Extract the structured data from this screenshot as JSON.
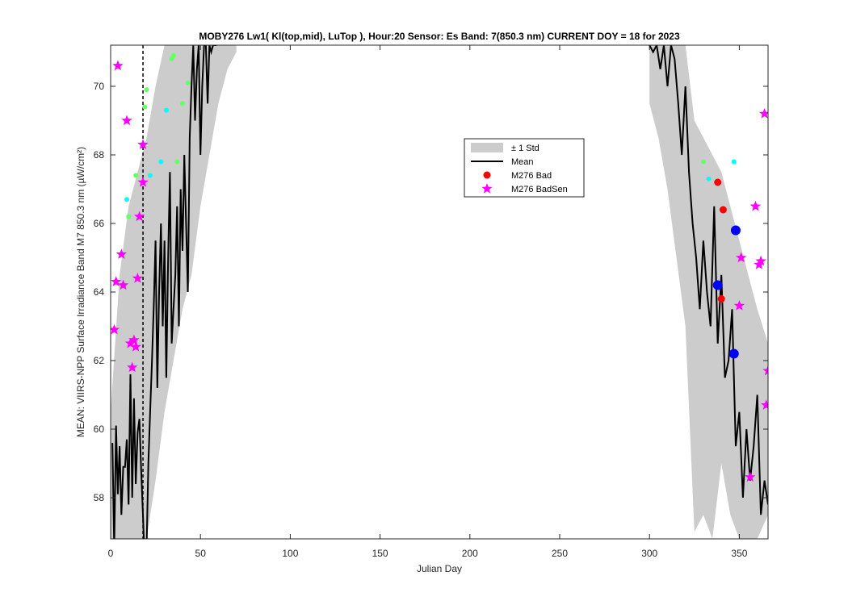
{
  "chart_data": {
    "type": "line",
    "title": "MOBY276   Lw1( Kl(top,mid), LuTop ),   Hour:20 Sensor: Es Band: 7(850.3 nm)   CURRENT DOY = 18 for 2023",
    "xlabel": "Julian Day",
    "ylabel": "MEAN: VIIRS-NPP Surface Irradiance Band M7 850.3 nm (µW/cm²)",
    "xlim": [
      0,
      366
    ],
    "ylim": [
      56.8,
      71.2
    ],
    "xticks": [
      0,
      50,
      100,
      150,
      200,
      250,
      300,
      350
    ],
    "yticks": [
      58,
      60,
      62,
      64,
      66,
      68,
      70
    ],
    "current_doy": 18,
    "legend": {
      "placement": "upper-center-right",
      "entries": [
        {
          "label": "± 1 Std",
          "kind": "band",
          "color": "#cccccc"
        },
        {
          "label": "Mean",
          "kind": "line",
          "color": "#000000"
        },
        {
          "label": "M276 Bad",
          "kind": "dot",
          "color": "#ff0000"
        },
        {
          "label": "M276 BadSen",
          "kind": "star",
          "color": "#ff00ff"
        }
      ]
    },
    "series": [
      {
        "name": "Mean",
        "color": "#000000",
        "x": [
          1,
          2,
          3,
          4,
          5,
          6,
          7,
          8,
          9,
          10,
          11,
          12,
          13,
          14,
          15,
          16,
          17,
          18,
          19,
          20,
          21,
          22,
          23,
          24,
          25,
          26,
          27,
          28,
          29,
          30,
          31,
          32,
          33,
          34,
          35,
          36,
          37,
          38,
          39,
          40,
          41,
          42,
          43,
          44,
          45,
          46,
          47,
          48,
          49,
          50,
          51,
          52,
          53,
          54,
          55,
          56,
          57,
          58,
          59
        ],
        "values": [
          59.6,
          56.5,
          60.1,
          58.1,
          59.5,
          57.5,
          58.9,
          58.9,
          59.7,
          57.8,
          61.6,
          58.0,
          60.9,
          58.4,
          59.9,
          60.3,
          58.8,
          57.5,
          56.0,
          56.5,
          59.0,
          60.5,
          62.0,
          63.6,
          65.5,
          61.2,
          64.0,
          66.0,
          63.0,
          65.5,
          61.5,
          65.0,
          67.5,
          62.5,
          63.5,
          64.5,
          66.5,
          63.0,
          67.0,
          65.2,
          68.0,
          66.0,
          64.0,
          68.5,
          70.0,
          71.2,
          69.0,
          70.5,
          71.2,
          68.0,
          70.0,
          71.2,
          71.2,
          69.5,
          71.2,
          71.0,
          71.2,
          71.2,
          71.2
        ]
      },
      {
        "name": "Mean",
        "color": "#000000",
        "x": [
          300,
          302,
          304,
          306,
          308,
          310,
          312,
          314,
          316,
          318,
          320,
          322,
          324,
          326,
          328,
          330,
          332,
          334,
          336,
          338,
          340,
          342,
          344,
          346,
          348,
          350,
          352,
          354,
          356,
          358,
          360,
          362,
          364,
          366
        ],
        "values": [
          71.2,
          71.0,
          71.2,
          70.5,
          71.2,
          70.0,
          71.2,
          70.8,
          69.5,
          68.0,
          70.0,
          67.5,
          66.0,
          65.0,
          63.5,
          65.5,
          64.0,
          63.0,
          66.5,
          62.5,
          64.5,
          61.5,
          62.0,
          63.5,
          59.5,
          60.5,
          58.0,
          60.0,
          58.5,
          59.5,
          61.0,
          57.5,
          58.5,
          57.8
        ]
      }
    ],
    "std_band": {
      "name": "± 1 Std",
      "color": "#cccccc",
      "x": [
        0,
        5,
        10,
        15,
        20,
        25,
        30,
        35,
        40,
        45,
        50,
        55,
        60,
        65,
        70,
        300,
        305,
        310,
        315,
        320,
        325,
        330,
        335,
        340,
        345,
        350,
        355,
        360,
        366
      ],
      "upper": [
        60.5,
        64.5,
        66.5,
        67.5,
        68.5,
        70.0,
        71.2,
        71.2,
        71.2,
        71.2,
        71.2,
        71.2,
        71.2,
        71.2,
        71.2,
        71.2,
        71.2,
        71.2,
        71.2,
        71.2,
        69.0,
        68.5,
        68.0,
        67.5,
        66.5,
        65.5,
        64.5,
        63.5,
        62.5
      ],
      "lower": [
        56.8,
        56.8,
        56.8,
        56.8,
        56.8,
        58.5,
        60.5,
        62.0,
        63.5,
        64.5,
        66.5,
        68.0,
        69.5,
        70.5,
        71.0,
        69.5,
        68.5,
        67.0,
        65.0,
        63.0,
        57.0,
        57.5,
        56.8,
        59.0,
        57.5,
        56.8,
        56.8,
        56.8,
        57.5
      ]
    },
    "flagged_cyan": {
      "color": "#00ffff",
      "x": [
        9,
        22,
        28,
        31,
        333,
        347
      ],
      "values": [
        66.7,
        67.4,
        67.8,
        69.3,
        67.3,
        67.8
      ]
    },
    "flagged_green": {
      "color": "#66ff66",
      "x": [
        10,
        14,
        19,
        20,
        34,
        35,
        37,
        40,
        43,
        330
      ],
      "values": [
        66.2,
        67.4,
        69.4,
        69.9,
        70.8,
        70.9,
        67.8,
        69.5,
        70.1,
        67.8
      ]
    },
    "bad_points": {
      "name": "M276 Bad",
      "color": "#ff0000",
      "x": [
        338,
        340,
        341
      ],
      "values": [
        67.2,
        63.8,
        66.4
      ]
    },
    "blue_points": {
      "color": "#0000ff",
      "x": [
        338,
        347,
        348
      ],
      "values": [
        64.2,
        62.2,
        65.8
      ]
    },
    "badsen_points": {
      "name": "M276 BadSen",
      "color": "#ff00ff",
      "x": [
        2,
        3,
        4,
        6,
        7,
        9,
        11,
        12,
        13,
        14,
        15,
        16,
        18,
        18,
        350,
        351,
        356,
        359,
        361,
        362,
        364,
        365,
        366
      ],
      "values": [
        62.9,
        64.3,
        70.6,
        65.1,
        64.2,
        69.0,
        62.5,
        61.8,
        62.6,
        62.4,
        64.4,
        66.2,
        67.2,
        68.3,
        63.6,
        65.0,
        58.6,
        66.5,
        64.8,
        64.9,
        69.2,
        60.7,
        61.7
      ]
    }
  }
}
